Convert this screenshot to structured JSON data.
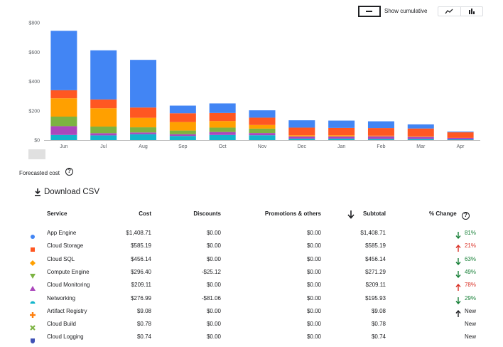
{
  "controls": {
    "cumulative_label": "Show cumulative",
    "line_view_icon": "line-chart-icon",
    "bar_view_icon": "bar-chart-icon"
  },
  "chart_data": {
    "type": "bar",
    "stacked": true,
    "categories": [
      "Jun",
      "Jul",
      "Aug",
      "Sep",
      "Oct",
      "Nov",
      "Dec",
      "Jan",
      "Feb",
      "Mar",
      "Apr"
    ],
    "y_ticks": [
      "$0",
      "$200",
      "$400",
      "$600",
      "$800"
    ],
    "ylim": [
      0,
      800
    ],
    "series": [
      {
        "name": "Networking",
        "color": "#12b5cb",
        "values": [
          35,
          32,
          40,
          28,
          35,
          33,
          10,
          10,
          8,
          8,
          5
        ]
      },
      {
        "name": "Cloud Monitoring",
        "color": "#ab47bc",
        "values": [
          60,
          15,
          12,
          12,
          20,
          15,
          15,
          15,
          18,
          15,
          10
        ]
      },
      {
        "name": "Compute Engine",
        "color": "#7cb342",
        "values": [
          65,
          45,
          35,
          25,
          30,
          30,
          0,
          0,
          0,
          0,
          0
        ]
      },
      {
        "name": "Cloud SQL",
        "color": "#ffa000",
        "values": [
          125,
          125,
          65,
          58,
          45,
          25,
          8,
          8,
          4,
          4,
          0
        ]
      },
      {
        "name": "Cloud Storage",
        "color": "#ff5722",
        "values": [
          55,
          60,
          70,
          60,
          55,
          50,
          52,
          50,
          52,
          52,
          38
        ]
      },
      {
        "name": "App Engine",
        "color": "#4285f4",
        "values": [
          405,
          335,
          325,
          52,
          65,
          50,
          50,
          50,
          46,
          28,
          5
        ]
      }
    ]
  },
  "forecast": {
    "label": "Forecasted cost"
  },
  "download": {
    "label": "Download CSV"
  },
  "table": {
    "headers": {
      "service": "Service",
      "cost": "Cost",
      "discounts": "Discounts",
      "promotions": "Promotions & others",
      "subtotal": "Subtotal",
      "change": "% Change"
    },
    "rows": [
      {
        "service": "App Engine",
        "cost": "$1,408.71",
        "discounts": "$0.00",
        "promotions": "$0.00",
        "subtotal": "$1,408.71",
        "change": "81%",
        "direction": "down",
        "marker": "circle",
        "color": "#4285f4"
      },
      {
        "service": "Cloud Storage",
        "cost": "$585.19",
        "discounts": "$0.00",
        "promotions": "$0.00",
        "subtotal": "$585.19",
        "change": "21%",
        "direction": "up",
        "marker": "square",
        "color": "#ff5722"
      },
      {
        "service": "Cloud SQL",
        "cost": "$456.14",
        "discounts": "$0.00",
        "promotions": "$0.00",
        "subtotal": "$456.14",
        "change": "63%",
        "direction": "down",
        "marker": "diamond",
        "color": "#ffa000"
      },
      {
        "service": "Compute Engine",
        "cost": "$296.40",
        "discounts": "-$25.12",
        "promotions": "$0.00",
        "subtotal": "$271.29",
        "change": "49%",
        "direction": "down",
        "marker": "triangle-down",
        "color": "#7cb342"
      },
      {
        "service": "Cloud Monitoring",
        "cost": "$209.11",
        "discounts": "$0.00",
        "promotions": "$0.00",
        "subtotal": "$209.11",
        "change": "78%",
        "direction": "up",
        "marker": "triangle-up",
        "color": "#ab47bc"
      },
      {
        "service": "Networking",
        "cost": "$276.99",
        "discounts": "-$81.06",
        "promotions": "$0.00",
        "subtotal": "$195.93",
        "change": "29%",
        "direction": "down",
        "marker": "semicircle",
        "color": "#12b5cb"
      },
      {
        "service": "Artifact Registry",
        "cost": "$9.08",
        "discounts": "$0.00",
        "promotions": "$0.00",
        "subtotal": "$9.08",
        "change": "New",
        "direction": "new-up",
        "marker": "cross",
        "color": "#ff7f0e"
      },
      {
        "service": "Cloud Build",
        "cost": "$0.78",
        "discounts": "$0.00",
        "promotions": "$0.00",
        "subtotal": "$0.78",
        "change": "New",
        "direction": "none",
        "marker": "x",
        "color": "#7cb342"
      },
      {
        "service": "Cloud Logging",
        "cost": "$0.74",
        "discounts": "$0.00",
        "promotions": "$0.00",
        "subtotal": "$0.74",
        "change": "New",
        "direction": "none",
        "marker": "shield",
        "color": "#3f51b5"
      }
    ]
  }
}
